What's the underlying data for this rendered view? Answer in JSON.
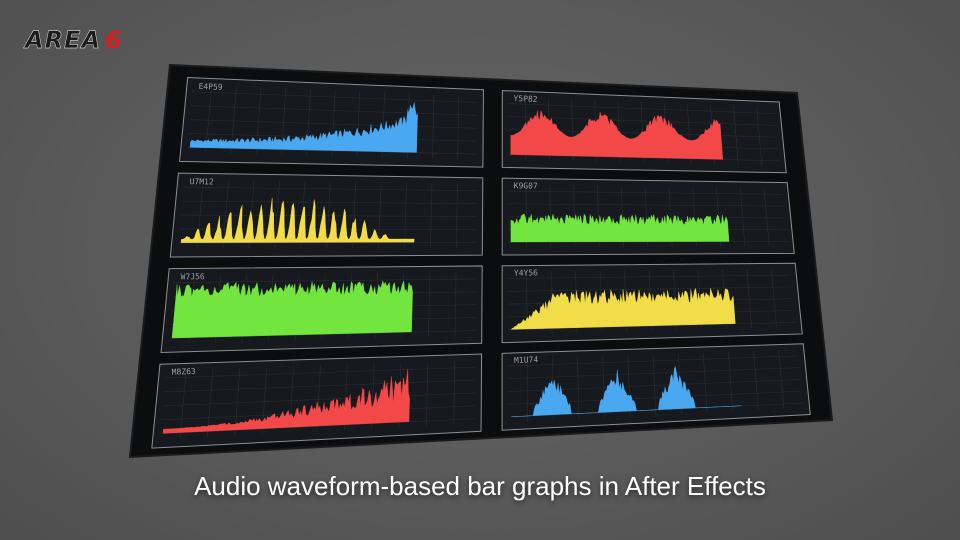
{
  "logo": {
    "text": "AREA",
    "number": "6"
  },
  "caption": "Audio waveform-based bar graphs in After Effects",
  "panels": [
    {
      "label": "E4P59",
      "color": "#4aa8f0"
    },
    {
      "label": "U7M12",
      "color": "#f2dc48"
    },
    {
      "label": "W7J56",
      "color": "#72e53e"
    },
    {
      "label": "M8Z63",
      "color": "#f24848"
    },
    {
      "label": "Y5P82",
      "color": "#f24848"
    },
    {
      "label": "K9G07",
      "color": "#72e53e"
    },
    {
      "label": "Y4Y56",
      "color": "#f2dc48"
    },
    {
      "label": "M1U74",
      "color": "#4aa8f0"
    }
  ]
}
